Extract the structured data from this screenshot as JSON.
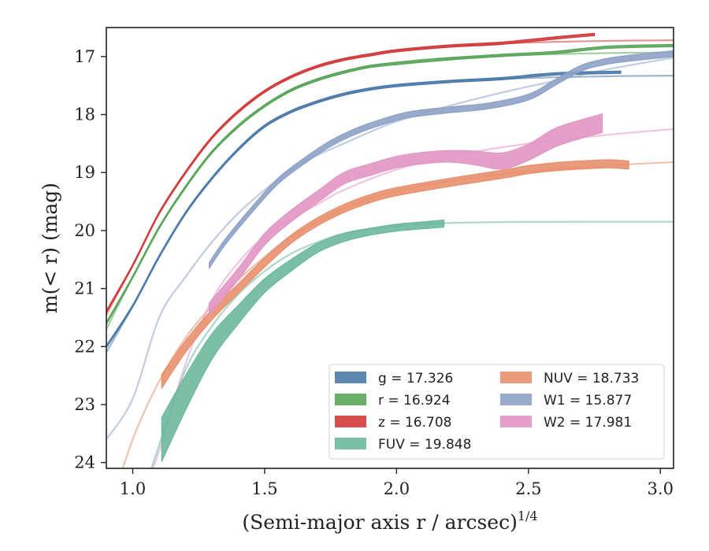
{
  "chart_data": {
    "type": "line",
    "title": "",
    "xlabel": "(Semi-major axis r / arcsec)",
    "xlabel_exponent": "1/4",
    "ylabel": "m(< r) (mag)",
    "xlim": [
      0.9,
      3.05
    ],
    "ylim": [
      24.1,
      16.5
    ],
    "y_inverted": true,
    "xticks": [
      "1.0",
      "1.5",
      "2.0",
      "2.5",
      "3.0"
    ],
    "yticks": [
      "17",
      "18",
      "19",
      "20",
      "21",
      "22",
      "23",
      "24"
    ],
    "grid": false,
    "legend_placement": "lower-right",
    "series": [
      {
        "name": "g = 17.326",
        "color": "#4c7aa8",
        "asymptote": 17.326,
        "model": [
          [
            0.9,
            22.1
          ],
          [
            1.0,
            21.3
          ],
          [
            1.1,
            20.45
          ],
          [
            1.2,
            19.7
          ],
          [
            1.3,
            19.1
          ],
          [
            1.4,
            18.6
          ],
          [
            1.5,
            18.2
          ],
          [
            1.6,
            17.95
          ],
          [
            1.7,
            17.78
          ],
          [
            1.8,
            17.65
          ],
          [
            1.9,
            17.55
          ],
          [
            2.0,
            17.49
          ],
          [
            2.2,
            17.42
          ],
          [
            2.5,
            17.37
          ],
          [
            2.8,
            17.34
          ],
          [
            3.05,
            17.33
          ]
        ],
        "profile": [
          [
            0.9,
            22.0
          ],
          [
            1.0,
            21.3
          ],
          [
            1.1,
            20.45
          ],
          [
            1.2,
            19.7
          ],
          [
            1.3,
            19.1
          ],
          [
            1.4,
            18.6
          ],
          [
            1.5,
            18.2
          ],
          [
            1.6,
            17.95
          ],
          [
            1.7,
            17.78
          ],
          [
            1.8,
            17.65
          ],
          [
            1.9,
            17.56
          ],
          [
            2.0,
            17.5
          ],
          [
            2.2,
            17.43
          ],
          [
            2.4,
            17.38
          ],
          [
            2.6,
            17.3
          ],
          [
            2.85,
            17.27
          ]
        ],
        "halfwidth": 0.02
      },
      {
        "name": "r = 16.924",
        "color": "#5aa55a",
        "asymptote": 16.924,
        "model": [
          [
            0.9,
            21.7
          ],
          [
            1.0,
            20.8
          ],
          [
            1.1,
            19.95
          ],
          [
            1.2,
            19.25
          ],
          [
            1.3,
            18.65
          ],
          [
            1.4,
            18.2
          ],
          [
            1.5,
            17.85
          ],
          [
            1.6,
            17.58
          ],
          [
            1.7,
            17.4
          ],
          [
            1.8,
            17.27
          ],
          [
            1.9,
            17.17
          ],
          [
            2.0,
            17.1
          ],
          [
            2.2,
            17.02
          ],
          [
            2.5,
            16.97
          ],
          [
            2.8,
            16.94
          ],
          [
            3.05,
            16.93
          ]
        ],
        "profile": [
          [
            0.9,
            21.6
          ],
          [
            1.0,
            20.8
          ],
          [
            1.1,
            19.95
          ],
          [
            1.2,
            19.25
          ],
          [
            1.3,
            18.65
          ],
          [
            1.4,
            18.2
          ],
          [
            1.5,
            17.85
          ],
          [
            1.6,
            17.58
          ],
          [
            1.7,
            17.4
          ],
          [
            1.8,
            17.27
          ],
          [
            1.9,
            17.17
          ],
          [
            2.0,
            17.12
          ],
          [
            2.2,
            17.04
          ],
          [
            2.4,
            16.98
          ],
          [
            2.6,
            16.93
          ],
          [
            2.8,
            16.84
          ],
          [
            3.05,
            16.81
          ]
        ],
        "halfwidth": 0.02
      },
      {
        "name": "z = 16.708",
        "color": "#d13b3b",
        "asymptote": 16.708,
        "model": [
          [
            0.9,
            21.45
          ],
          [
            1.0,
            20.6
          ],
          [
            1.1,
            19.7
          ],
          [
            1.2,
            19.0
          ],
          [
            1.3,
            18.4
          ],
          [
            1.4,
            17.95
          ],
          [
            1.5,
            17.6
          ],
          [
            1.6,
            17.35
          ],
          [
            1.7,
            17.17
          ],
          [
            1.8,
            17.05
          ],
          [
            1.9,
            16.96
          ],
          [
            2.0,
            16.89
          ],
          [
            2.2,
            16.82
          ],
          [
            2.5,
            16.76
          ],
          [
            2.8,
            16.73
          ],
          [
            3.05,
            16.72
          ]
        ],
        "profile": [
          [
            0.9,
            21.4
          ],
          [
            1.0,
            20.6
          ],
          [
            1.1,
            19.7
          ],
          [
            1.2,
            19.0
          ],
          [
            1.3,
            18.4
          ],
          [
            1.4,
            17.95
          ],
          [
            1.5,
            17.6
          ],
          [
            1.6,
            17.35
          ],
          [
            1.7,
            17.17
          ],
          [
            1.8,
            17.05
          ],
          [
            1.9,
            16.97
          ],
          [
            2.0,
            16.9
          ],
          [
            2.2,
            16.82
          ],
          [
            2.4,
            16.77
          ],
          [
            2.6,
            16.68
          ],
          [
            2.75,
            16.62
          ]
        ],
        "halfwidth": 0.02
      },
      {
        "name": "FUV = 19.848",
        "color": "#6bb89c",
        "asymptote": 19.848,
        "model": [
          [
            1.05,
            24.4
          ],
          [
            1.1,
            23.7
          ],
          [
            1.2,
            22.4
          ],
          [
            1.3,
            21.65
          ],
          [
            1.4,
            21.1
          ],
          [
            1.5,
            20.7
          ],
          [
            1.6,
            20.4
          ],
          [
            1.7,
            20.2
          ],
          [
            1.8,
            20.05
          ],
          [
            1.9,
            19.97
          ],
          [
            2.0,
            19.92
          ],
          [
            2.2,
            19.87
          ],
          [
            2.5,
            19.85
          ],
          [
            3.05,
            19.848
          ]
        ],
        "profile": [
          [
            1.11,
            23.6
          ],
          [
            1.2,
            22.8
          ],
          [
            1.3,
            22.0
          ],
          [
            1.4,
            21.45
          ],
          [
            1.5,
            20.95
          ],
          [
            1.6,
            20.6
          ],
          [
            1.7,
            20.3
          ],
          [
            1.8,
            20.12
          ],
          [
            1.9,
            20.02
          ],
          [
            2.0,
            19.95
          ],
          [
            2.1,
            19.91
          ],
          [
            2.18,
            19.88
          ]
        ],
        "halfwidths": [
          0.38,
          0.3,
          0.22,
          0.16,
          0.12,
          0.1,
          0.08,
          0.07,
          0.06,
          0.06,
          0.06,
          0.06
        ]
      },
      {
        "name": "NUV = 18.733",
        "color": "#e8906e",
        "asymptote": 18.733,
        "model": [
          [
            0.9,
            25.0
          ],
          [
            1.0,
            23.6
          ],
          [
            1.1,
            22.6
          ],
          [
            1.2,
            21.85
          ],
          [
            1.3,
            21.3
          ],
          [
            1.4,
            20.85
          ],
          [
            1.5,
            20.45
          ],
          [
            1.6,
            20.1
          ],
          [
            1.7,
            19.85
          ],
          [
            1.8,
            19.62
          ],
          [
            1.9,
            19.45
          ],
          [
            2.0,
            19.32
          ],
          [
            2.2,
            19.15
          ],
          [
            2.5,
            18.98
          ],
          [
            2.8,
            18.88
          ],
          [
            3.05,
            18.82
          ]
        ],
        "profile": [
          [
            1.11,
            22.6
          ],
          [
            1.2,
            22.0
          ],
          [
            1.3,
            21.45
          ],
          [
            1.4,
            21.0
          ],
          [
            1.5,
            20.55
          ],
          [
            1.6,
            20.15
          ],
          [
            1.7,
            19.85
          ],
          [
            1.8,
            19.62
          ],
          [
            1.9,
            19.45
          ],
          [
            2.0,
            19.33
          ],
          [
            2.2,
            19.17
          ],
          [
            2.4,
            19.03
          ],
          [
            2.5,
            18.95
          ],
          [
            2.6,
            18.9
          ],
          [
            2.7,
            18.87
          ],
          [
            2.8,
            18.85
          ],
          [
            2.88,
            18.87
          ]
        ],
        "halfwidths": [
          0.12,
          0.1,
          0.09,
          0.08,
          0.08,
          0.07,
          0.07,
          0.07,
          0.07,
          0.07,
          0.07,
          0.07,
          0.07,
          0.07,
          0.07,
          0.07,
          0.07
        ]
      },
      {
        "name": "W1 = 15.877",
        "color": "#8ea2c6",
        "asymptote": 15.877,
        "model": [
          [
            0.9,
            23.6
          ],
          [
            1.0,
            22.9
          ],
          [
            1.1,
            21.5
          ],
          [
            1.2,
            20.8
          ],
          [
            1.3,
            20.2
          ],
          [
            1.4,
            19.7
          ],
          [
            1.5,
            19.3
          ],
          [
            1.6,
            18.95
          ],
          [
            1.7,
            18.7
          ],
          [
            1.8,
            18.5
          ],
          [
            1.9,
            18.3
          ],
          [
            2.0,
            18.12
          ],
          [
            2.2,
            17.85
          ],
          [
            2.4,
            17.62
          ],
          [
            2.6,
            17.42
          ],
          [
            2.8,
            17.22
          ],
          [
            3.05,
            17.02
          ]
        ],
        "profile": [
          [
            1.29,
            20.6
          ],
          [
            1.35,
            20.2
          ],
          [
            1.45,
            19.65
          ],
          [
            1.55,
            19.15
          ],
          [
            1.65,
            18.8
          ],
          [
            1.75,
            18.5
          ],
          [
            1.85,
            18.28
          ],
          [
            1.95,
            18.12
          ],
          [
            2.05,
            18.0
          ],
          [
            2.2,
            17.92
          ],
          [
            2.35,
            17.85
          ],
          [
            2.5,
            17.7
          ],
          [
            2.6,
            17.45
          ],
          [
            2.7,
            17.2
          ],
          [
            2.8,
            17.08
          ],
          [
            2.9,
            17.02
          ],
          [
            3.05,
            16.95
          ]
        ],
        "halfwidth": 0.05
      },
      {
        "name": "W2 = 17.981",
        "color": "#e296c4",
        "asymptote": 17.981,
        "model": [
          [
            1.05,
            24.4
          ],
          [
            1.1,
            23.8
          ],
          [
            1.2,
            22.3
          ],
          [
            1.3,
            21.2
          ],
          [
            1.4,
            20.55
          ],
          [
            1.5,
            20.1
          ],
          [
            1.6,
            19.8
          ],
          [
            1.7,
            19.55
          ],
          [
            1.8,
            19.3
          ],
          [
            2.0,
            18.95
          ],
          [
            2.2,
            18.72
          ],
          [
            2.5,
            18.5
          ],
          [
            2.8,
            18.35
          ],
          [
            3.05,
            18.25
          ]
        ],
        "profile": [
          [
            1.29,
            21.35
          ],
          [
            1.4,
            20.75
          ],
          [
            1.5,
            20.15
          ],
          [
            1.6,
            19.75
          ],
          [
            1.7,
            19.42
          ],
          [
            1.8,
            19.1
          ],
          [
            1.9,
            18.95
          ],
          [
            2.0,
            18.82
          ],
          [
            2.1,
            18.75
          ],
          [
            2.2,
            18.72
          ],
          [
            2.3,
            18.75
          ],
          [
            2.4,
            18.8
          ],
          [
            2.5,
            18.65
          ],
          [
            2.6,
            18.4
          ],
          [
            2.7,
            18.25
          ],
          [
            2.78,
            18.15
          ]
        ],
        "halfwidths": [
          0.1,
          0.1,
          0.1,
          0.1,
          0.1,
          0.1,
          0.1,
          0.1,
          0.1,
          0.1,
          0.12,
          0.14,
          0.14,
          0.16,
          0.16,
          0.16
        ]
      }
    ]
  }
}
